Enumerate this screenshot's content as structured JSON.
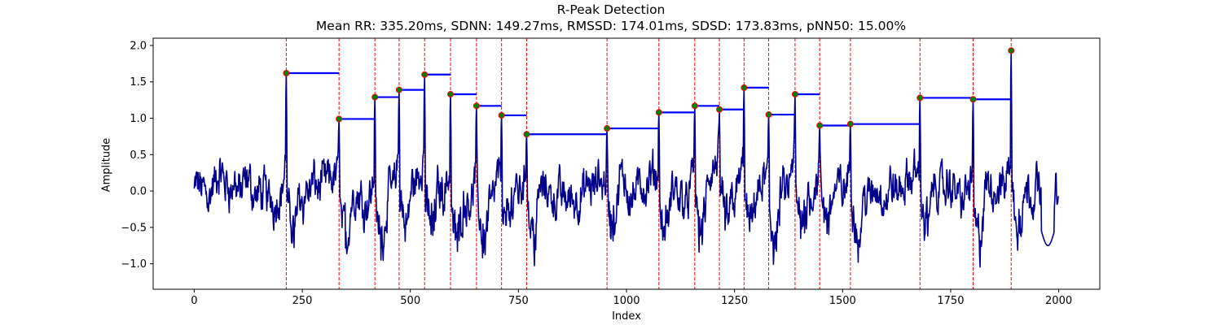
{
  "chart_data": {
    "type": "line",
    "title": "R-Peak Detection",
    "subtitle": "Mean RR: 335.20ms, SDNN: 149.27ms, RMSSD: 174.01ms, SDSD: 173.83ms, pNN50: 15.00%",
    "xlabel": "Index",
    "ylabel": "Amplitude",
    "xlim": [
      -95,
      2095
    ],
    "ylim": [
      -1.35,
      2.1
    ],
    "xticks": [
      0,
      250,
      500,
      750,
      1000,
      1250,
      1500,
      1750,
      2000
    ],
    "yticks": [
      -1.0,
      -0.5,
      0.0,
      0.5,
      1.0,
      1.5,
      2.0
    ],
    "xtick_labels": [
      "0",
      "250",
      "500",
      "750",
      "1000",
      "1250",
      "1500",
      "1750",
      "2000"
    ],
    "ytick_labels": [
      "−1.0",
      "−0.5",
      "0.0",
      "0.5",
      "1.0",
      "1.5",
      "2.0"
    ],
    "grid": false,
    "signal": {
      "color": "#00008b",
      "length": 2000,
      "baseline_noise_amplitude": 0.25,
      "min_value": -1.18,
      "max_value": 1.93
    },
    "r_peaks": {
      "marker_color": "#008000",
      "edge_color": "#ff0000",
      "index": [
        213,
        335,
        418,
        474,
        533,
        593,
        653,
        711,
        769,
        955,
        1075,
        1158,
        1215,
        1272,
        1329,
        1390,
        1447,
        1518,
        1679,
        1802,
        1890
      ],
      "amplitude": [
        1.62,
        0.99,
        1.29,
        1.39,
        1.6,
        1.33,
        1.17,
        1.04,
        0.78,
        0.86,
        1.08,
        1.17,
        1.12,
        1.42,
        1.05,
        1.33,
        0.9,
        0.92,
        1.28,
        1.26,
        1.93
      ]
    },
    "vlines": {
      "color": "#ff0000",
      "style": "dashed"
    },
    "rr_segments": {
      "color": "#0000ff"
    }
  }
}
